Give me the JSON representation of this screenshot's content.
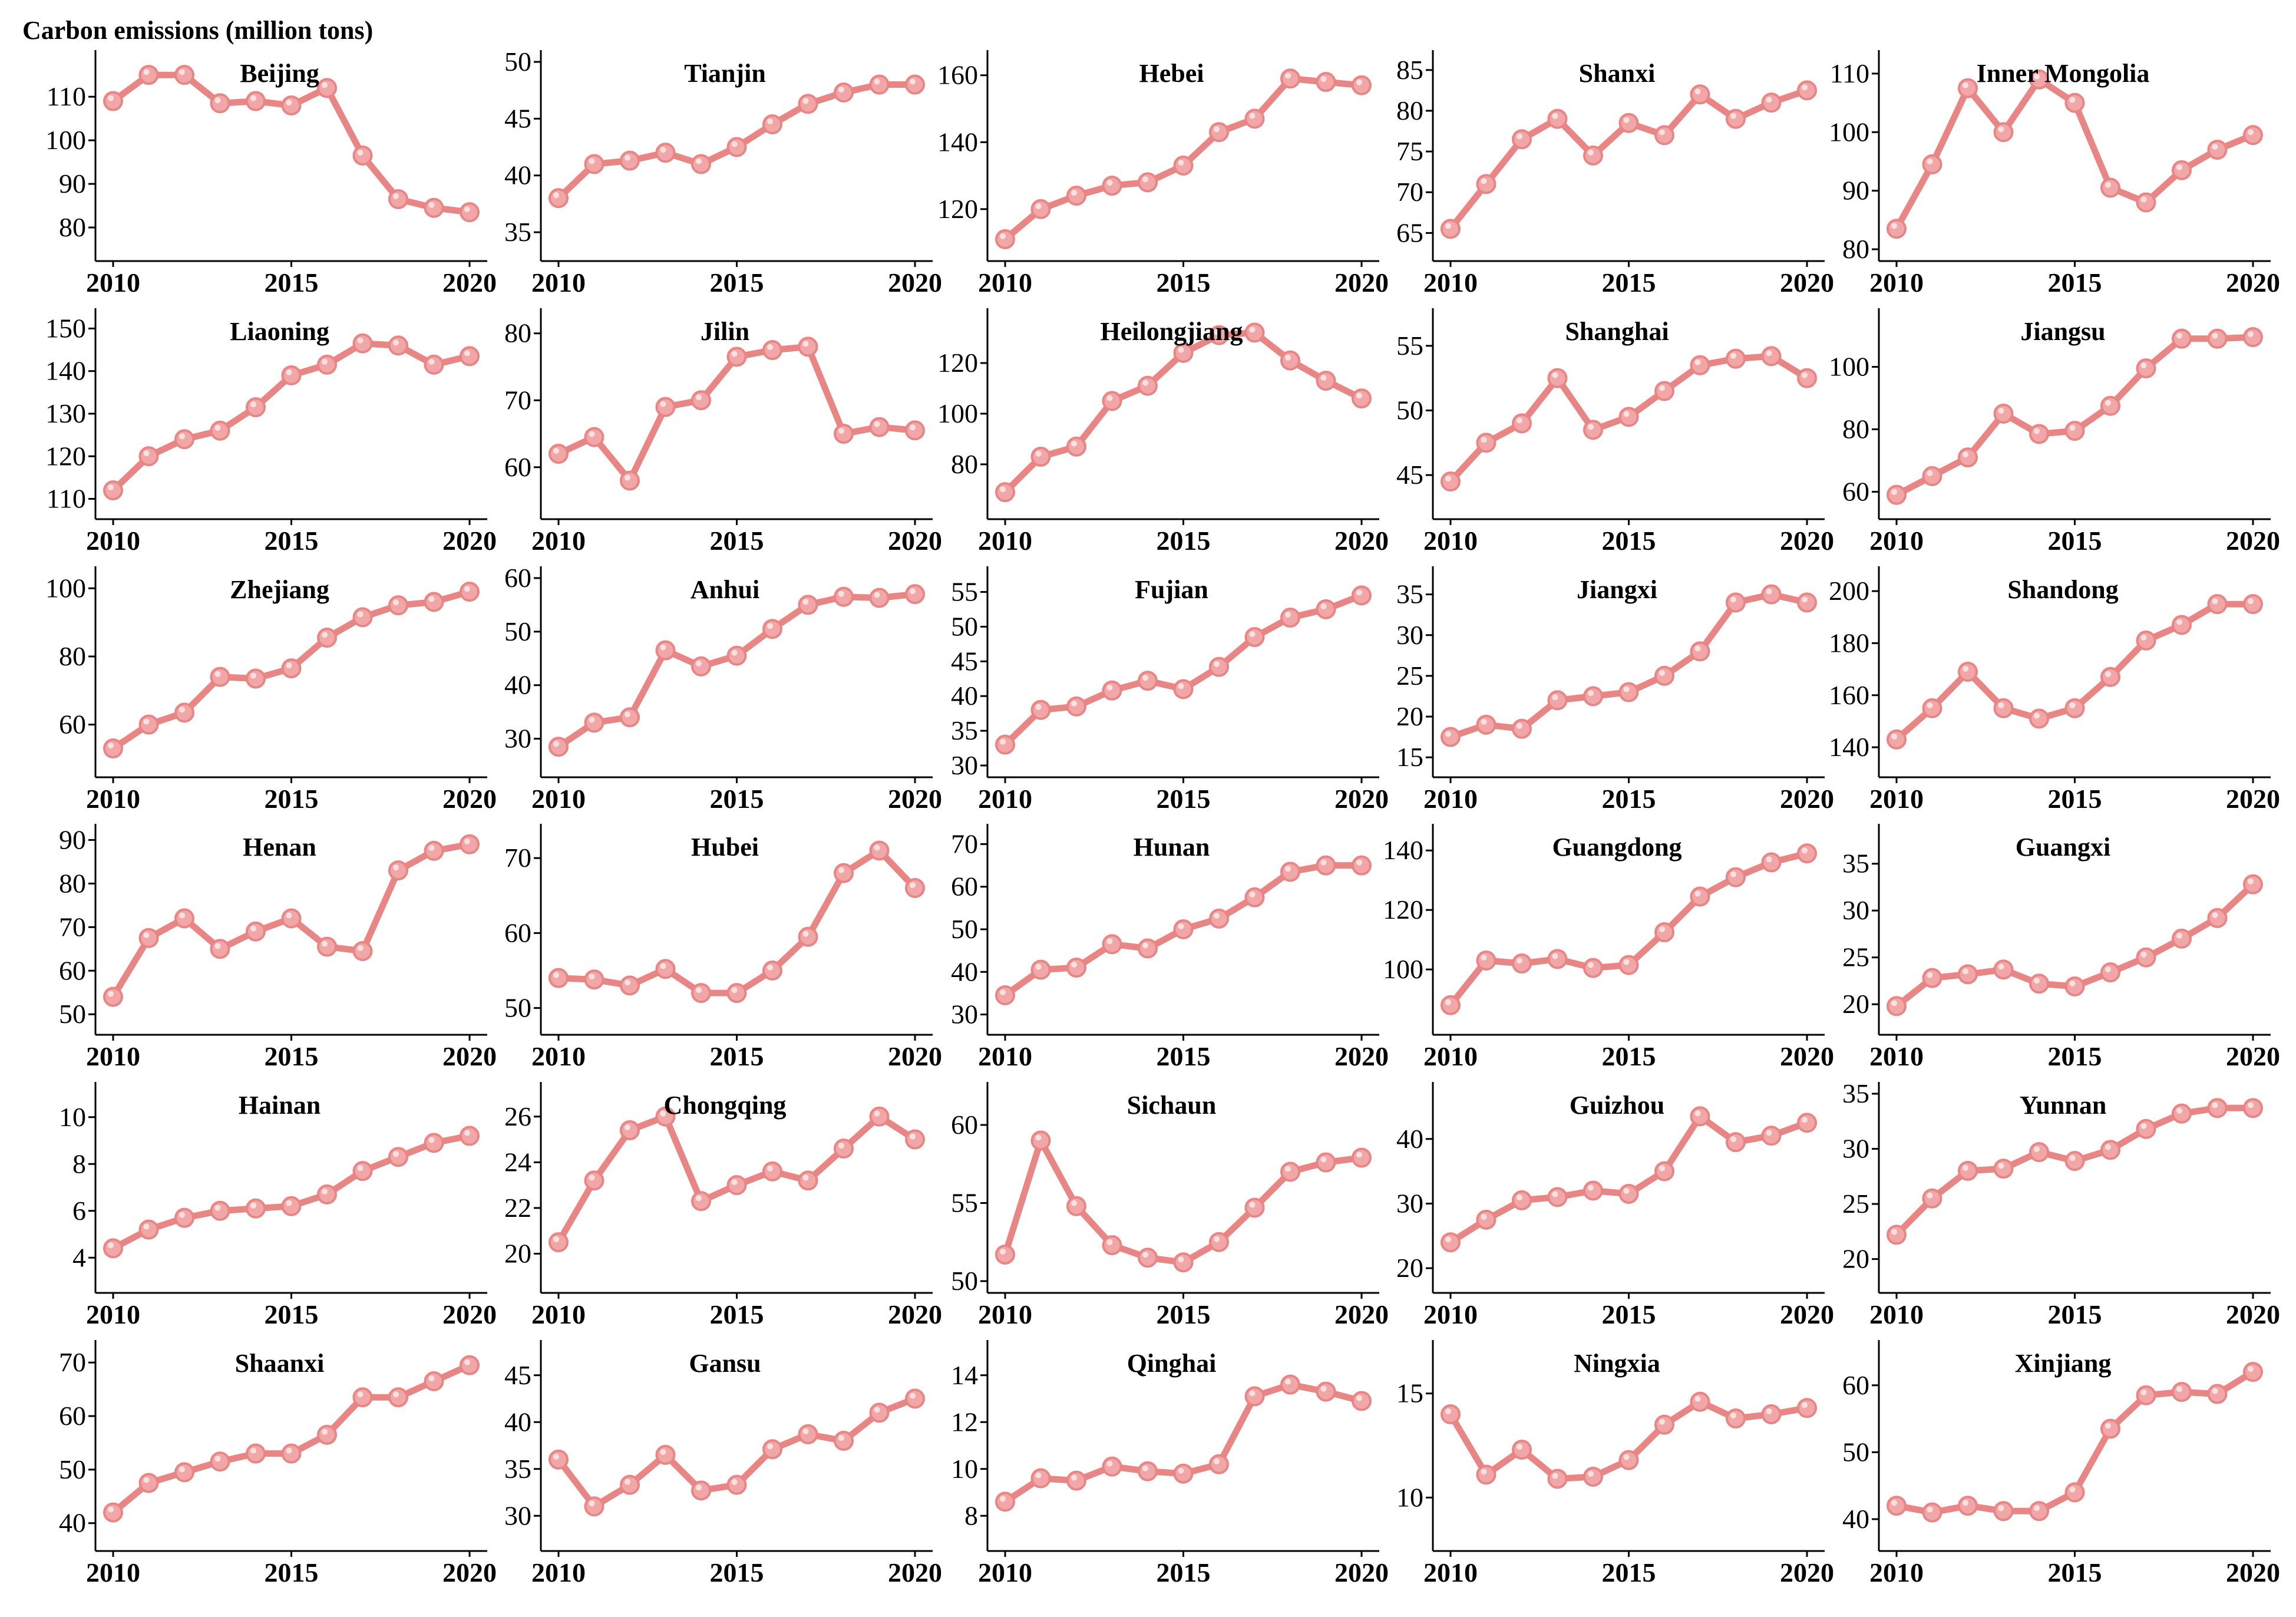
{
  "figure": {
    "ylabel": "Carbon emissions (million tons)",
    "line_color": "#e88585",
    "marker_color": "#f1a7a7"
  },
  "chart_data": [
    {
      "type": "line",
      "title": "Beijing",
      "xlim": [
        2010,
        2020
      ],
      "xticks": [
        2010,
        2015,
        2020
      ],
      "ylim": [
        75,
        118
      ],
      "yticks": [
        80,
        90,
        100,
        110
      ],
      "x": [
        2010,
        2011,
        2012,
        2013,
        2014,
        2015,
        2016,
        2017,
        2018,
        2019,
        2020
      ],
      "values": [
        109,
        115,
        115,
        108.5,
        109,
        108,
        112,
        96.5,
        86.5,
        84.5,
        83.5
      ]
    },
    {
      "type": "line",
      "title": "Tianjin",
      "xlim": [
        2010,
        2020
      ],
      "xticks": [
        2010,
        2015,
        2020
      ],
      "ylim": [
        33.5,
        50
      ],
      "yticks": [
        35,
        40,
        45,
        50
      ],
      "x": [
        2010,
        2011,
        2012,
        2013,
        2014,
        2015,
        2016,
        2017,
        2018,
        2019,
        2020
      ],
      "values": [
        38,
        41,
        41.3,
        42,
        41,
        42.5,
        44.5,
        46.3,
        47.3,
        48,
        48
      ]
    },
    {
      "type": "line",
      "title": "Hebei",
      "xlim": [
        2010,
        2020
      ],
      "xticks": [
        2010,
        2015,
        2020
      ],
      "ylim": [
        108,
        164
      ],
      "yticks": [
        120,
        140,
        160
      ],
      "x": [
        2010,
        2011,
        2012,
        2013,
        2014,
        2015,
        2016,
        2017,
        2018,
        2019,
        2020
      ],
      "values": [
        111,
        120,
        124,
        127,
        128,
        133,
        143,
        147,
        159,
        158,
        157
      ]
    },
    {
      "type": "line",
      "title": "Shanxi",
      "xlim": [
        2010,
        2020
      ],
      "xticks": [
        2010,
        2015,
        2020
      ],
      "ylim": [
        63,
        86
      ],
      "yticks": [
        65,
        70,
        75,
        80,
        85
      ],
      "x": [
        2010,
        2011,
        2012,
        2013,
        2014,
        2015,
        2016,
        2017,
        2018,
        2019,
        2020
      ],
      "values": [
        65.5,
        71,
        76.5,
        79,
        74.5,
        78.5,
        77,
        82,
        79,
        81,
        82.5
      ]
    },
    {
      "type": "line",
      "title": "Inner Mongolia",
      "xlim": [
        2010,
        2020
      ],
      "xticks": [
        2010,
        2015,
        2020
      ],
      "ylim": [
        80,
        112
      ],
      "yticks": [
        80,
        90,
        100,
        110
      ],
      "x": [
        2010,
        2011,
        2012,
        2013,
        2014,
        2015,
        2016,
        2017,
        2018,
        2019,
        2020
      ],
      "values": [
        83.5,
        94.5,
        107.5,
        100,
        109,
        105,
        90.5,
        88,
        93.5,
        97,
        99.5
      ]
    },
    {
      "type": "line",
      "title": "Liaoning",
      "xlim": [
        2010,
        2020
      ],
      "xticks": [
        2010,
        2015,
        2020
      ],
      "ylim": [
        108,
        152
      ],
      "yticks": [
        110,
        120,
        130,
        140,
        150
      ],
      "x": [
        2010,
        2011,
        2012,
        2013,
        2014,
        2015,
        2016,
        2017,
        2018,
        2019,
        2020
      ],
      "values": [
        112,
        120,
        124,
        126,
        131.5,
        139,
        141.5,
        146.5,
        146,
        141.5,
        143.5
      ]
    },
    {
      "type": "line",
      "title": "Jilin",
      "xlim": [
        2010,
        2020
      ],
      "xticks": [
        2010,
        2015,
        2020
      ],
      "ylim": [
        54,
        82
      ],
      "yticks": [
        60,
        70,
        80
      ],
      "x": [
        2010,
        2011,
        2012,
        2013,
        2014,
        2015,
        2016,
        2017,
        2018,
        2019,
        2020
      ],
      "values": [
        62,
        64.5,
        58,
        69,
        70,
        76.5,
        77.5,
        78,
        65,
        66,
        65.5
      ]
    },
    {
      "type": "line",
      "title": "Heilongjiang",
      "xlim": [
        2010,
        2020
      ],
      "xticks": [
        2010,
        2015,
        2020
      ],
      "ylim": [
        63,
        137
      ],
      "yticks": [
        80,
        100,
        120
      ],
      "x": [
        2010,
        2011,
        2012,
        2013,
        2014,
        2015,
        2016,
        2017,
        2018,
        2019,
        2020
      ],
      "values": [
        69,
        83,
        87,
        105,
        111,
        124,
        131,
        132,
        121,
        113,
        106
      ]
    },
    {
      "type": "line",
      "title": "Shanghai",
      "xlim": [
        2010,
        2020
      ],
      "xticks": [
        2010,
        2015,
        2020
      ],
      "ylim": [
        42.5,
        57
      ],
      "yticks": [
        45,
        50,
        55
      ],
      "x": [
        2010,
        2011,
        2012,
        2013,
        2014,
        2015,
        2016,
        2017,
        2018,
        2019,
        2020
      ],
      "values": [
        44.5,
        47.5,
        49,
        52.5,
        48.5,
        49.5,
        51.5,
        53.5,
        54,
        54.2,
        52.5
      ]
    },
    {
      "type": "line",
      "title": "Jiangsu",
      "xlim": [
        2010,
        2020
      ],
      "xticks": [
        2010,
        2015,
        2020
      ],
      "ylim": [
        55,
        115
      ],
      "yticks": [
        60,
        80,
        100
      ],
      "x": [
        2010,
        2011,
        2012,
        2013,
        2014,
        2015,
        2016,
        2017,
        2018,
        2019,
        2020
      ],
      "values": [
        59,
        65,
        71,
        85,
        78.5,
        79.5,
        87.5,
        99.5,
        109,
        109,
        109.5
      ]
    },
    {
      "type": "line",
      "title": "Zhejiang",
      "xlim": [
        2010,
        2020
      ],
      "xticks": [
        2010,
        2015,
        2020
      ],
      "ylim": [
        48,
        103
      ],
      "yticks": [
        60,
        80,
        100
      ],
      "x": [
        2010,
        2011,
        2012,
        2013,
        2014,
        2015,
        2016,
        2017,
        2018,
        2019,
        2020
      ],
      "values": [
        53,
        60,
        63.5,
        74,
        73.5,
        76.5,
        85.5,
        91.5,
        95,
        96,
        99
      ]
    },
    {
      "type": "line",
      "title": "Anhui",
      "xlim": [
        2010,
        2020
      ],
      "xticks": [
        2010,
        2015,
        2020
      ],
      "ylim": [
        25,
        60
      ],
      "yticks": [
        30,
        40,
        50,
        60
      ],
      "x": [
        2010,
        2011,
        2012,
        2013,
        2014,
        2015,
        2016,
        2017,
        2018,
        2019,
        2020
      ],
      "values": [
        28.5,
        33,
        34,
        46.5,
        43.5,
        45.5,
        50.5,
        55,
        56.5,
        56.3,
        57
      ]
    },
    {
      "type": "line",
      "title": "Fujian",
      "xlim": [
        2010,
        2020
      ],
      "xticks": [
        2010,
        2015,
        2020
      ],
      "ylim": [
        30,
        57
      ],
      "yticks": [
        30,
        35,
        40,
        45,
        50,
        55
      ],
      "x": [
        2010,
        2011,
        2012,
        2013,
        2014,
        2015,
        2016,
        2017,
        2018,
        2019,
        2020
      ],
      "values": [
        33,
        38,
        38.5,
        40.8,
        42.2,
        41,
        44.2,
        48.5,
        51.3,
        52.5,
        54.5
      ]
    },
    {
      "type": "line",
      "title": "Jiangxi",
      "xlim": [
        2010,
        2020
      ],
      "xticks": [
        2010,
        2015,
        2020
      ],
      "ylim": [
        14,
        37
      ],
      "yticks": [
        15,
        20,
        25,
        30,
        35
      ],
      "x": [
        2010,
        2011,
        2012,
        2013,
        2014,
        2015,
        2016,
        2017,
        2018,
        2019,
        2020
      ],
      "values": [
        17.5,
        19,
        18.5,
        22,
        22.5,
        23,
        25,
        28,
        34,
        35,
        34
      ]
    },
    {
      "type": "line",
      "title": "Shandong",
      "xlim": [
        2010,
        2020
      ],
      "xticks": [
        2010,
        2015,
        2020
      ],
      "ylim": [
        133,
        205
      ],
      "yticks": [
        140,
        160,
        180,
        200
      ],
      "x": [
        2010,
        2011,
        2012,
        2013,
        2014,
        2015,
        2016,
        2017,
        2018,
        2019,
        2020
      ],
      "values": [
        143,
        155,
        169,
        155,
        151,
        155,
        167,
        181,
        187,
        195,
        195
      ]
    },
    {
      "type": "line",
      "title": "Henan",
      "xlim": [
        2010,
        2020
      ],
      "xticks": [
        2010,
        2015,
        2020
      ],
      "ylim": [
        48,
        91
      ],
      "yticks": [
        50,
        60,
        70,
        80,
        90
      ],
      "x": [
        2010,
        2011,
        2012,
        2013,
        2014,
        2015,
        2016,
        2017,
        2018,
        2019,
        2020
      ],
      "values": [
        54,
        67.5,
        72,
        65,
        69,
        72,
        65.5,
        64.5,
        83,
        87.5,
        89
      ]
    },
    {
      "type": "line",
      "title": "Hubei",
      "xlim": [
        2010,
        2020
      ],
      "xticks": [
        2010,
        2015,
        2020
      ],
      "ylim": [
        48,
        73
      ],
      "yticks": [
        50,
        60,
        70
      ],
      "x": [
        2010,
        2011,
        2012,
        2013,
        2014,
        2015,
        2016,
        2017,
        2018,
        2019,
        2020
      ],
      "values": [
        54,
        53.8,
        53,
        55.2,
        52,
        52,
        55,
        59.5,
        68,
        71,
        66
      ]
    },
    {
      "type": "line",
      "title": "Hunan",
      "xlim": [
        2010,
        2020
      ],
      "xticks": [
        2010,
        2015,
        2020
      ],
      "ylim": [
        28,
        72
      ],
      "yticks": [
        30,
        40,
        50,
        60,
        70
      ],
      "x": [
        2010,
        2011,
        2012,
        2013,
        2014,
        2015,
        2016,
        2017,
        2018,
        2019,
        2020
      ],
      "values": [
        34.5,
        40.5,
        41,
        46.5,
        45.5,
        50,
        52.5,
        57.5,
        63.5,
        65,
        65
      ]
    },
    {
      "type": "line",
      "title": "Guangdong",
      "xlim": [
        2010,
        2020
      ],
      "xticks": [
        2010,
        2015,
        2020
      ],
      "ylim": [
        82,
        145
      ],
      "yticks": [
        100,
        120,
        140
      ],
      "x": [
        2010,
        2011,
        2012,
        2013,
        2014,
        2015,
        2016,
        2017,
        2018,
        2019,
        2020
      ],
      "values": [
        88,
        103,
        102,
        103.5,
        100.5,
        101.5,
        112.5,
        124.5,
        131,
        136,
        139
      ]
    },
    {
      "type": "line",
      "title": "Guangxi",
      "xlim": [
        2010,
        2020
      ],
      "xticks": [
        2010,
        2015,
        2020
      ],
      "ylim": [
        18,
        38
      ],
      "yticks": [
        20,
        25,
        30,
        35
      ],
      "x": [
        2010,
        2011,
        2012,
        2013,
        2014,
        2015,
        2016,
        2017,
        2018,
        2019,
        2020
      ],
      "values": [
        19.8,
        22.8,
        23.2,
        23.7,
        22.2,
        21.9,
        23.4,
        25,
        27,
        29.2,
        32.8
      ]
    },
    {
      "type": "line",
      "title": "Hainan",
      "xlim": [
        2010,
        2020
      ],
      "xticks": [
        2010,
        2015,
        2020
      ],
      "ylim": [
        3,
        11
      ],
      "yticks": [
        4,
        6,
        8,
        10
      ],
      "x": [
        2010,
        2011,
        2012,
        2013,
        2014,
        2015,
        2016,
        2017,
        2018,
        2019,
        2020
      ],
      "values": [
        4.4,
        5.2,
        5.7,
        6,
        6.1,
        6.2,
        6.7,
        7.7,
        8.3,
        8.9,
        9.2
      ]
    },
    {
      "type": "line",
      "title": "Chongqing",
      "xlim": [
        2010,
        2020
      ],
      "xticks": [
        2010,
        2015,
        2020
      ],
      "ylim": [
        18.8,
        27
      ],
      "yticks": [
        20,
        22,
        24,
        26
      ],
      "x": [
        2010,
        2011,
        2012,
        2013,
        2014,
        2015,
        2016,
        2017,
        2018,
        2019,
        2020
      ],
      "values": [
        20.5,
        23.2,
        25.4,
        26,
        22.3,
        23,
        23.6,
        23.2,
        24.6,
        26,
        25
      ]
    },
    {
      "type": "line",
      "title": "Sichaun",
      "xlim": [
        2010,
        2020
      ],
      "xticks": [
        2010,
        2015,
        2020
      ],
      "ylim": [
        50,
        62
      ],
      "yticks": [
        50,
        55,
        60
      ],
      "x": [
        2010,
        2011,
        2012,
        2013,
        2014,
        2015,
        2016,
        2017,
        2018,
        2019,
        2020
      ],
      "values": [
        51.7,
        59,
        54.8,
        52.3,
        51.5,
        51.2,
        52.5,
        54.7,
        57,
        57.6,
        57.9
      ]
    },
    {
      "type": "line",
      "title": "Guizhou",
      "xlim": [
        2010,
        2020
      ],
      "xticks": [
        2010,
        2015,
        2020
      ],
      "ylim": [
        18,
        47
      ],
      "yticks": [
        20,
        30,
        40
      ],
      "x": [
        2010,
        2011,
        2012,
        2013,
        2014,
        2015,
        2016,
        2017,
        2018,
        2019,
        2020
      ],
      "values": [
        24,
        27.5,
        30.5,
        31,
        32,
        31.5,
        35,
        43.5,
        39.5,
        40.5,
        42.5
      ]
    },
    {
      "type": "line",
      "title": "Yunnan",
      "xlim": [
        2010,
        2020
      ],
      "xticks": [
        2010,
        2015,
        2020
      ],
      "ylim": [
        18,
        35
      ],
      "yticks": [
        20,
        25,
        30,
        35
      ],
      "x": [
        2010,
        2011,
        2012,
        2013,
        2014,
        2015,
        2016,
        2017,
        2018,
        2019,
        2020
      ],
      "values": [
        22.2,
        25.5,
        28,
        28.2,
        29.7,
        28.9,
        29.9,
        31.8,
        33.2,
        33.7,
        33.7
      ]
    },
    {
      "type": "line",
      "title": "Shaanxi",
      "xlim": [
        2010,
        2020
      ],
      "xticks": [
        2010,
        2015,
        2020
      ],
      "ylim": [
        37,
        72
      ],
      "yticks": [
        40,
        50,
        60,
        70
      ],
      "x": [
        2010,
        2011,
        2012,
        2013,
        2014,
        2015,
        2016,
        2017,
        2018,
        2019,
        2020
      ],
      "values": [
        42,
        47.5,
        49.5,
        51.5,
        53,
        53,
        56.5,
        63.5,
        63.5,
        66.5,
        69.5
      ]
    },
    {
      "type": "line",
      "title": "Gansu",
      "xlim": [
        2010,
        2020
      ],
      "xticks": [
        2010,
        2015,
        2020
      ],
      "ylim": [
        27.5,
        47.5
      ],
      "yticks": [
        30,
        35,
        40,
        45
      ],
      "x": [
        2010,
        2011,
        2012,
        2013,
        2014,
        2015,
        2016,
        2017,
        2018,
        2019,
        2020
      ],
      "values": [
        36,
        31,
        33.3,
        36.5,
        32.7,
        33.3,
        37.1,
        38.7,
        38,
        41,
        42.5
      ]
    },
    {
      "type": "line",
      "title": "Qinghai",
      "xlim": [
        2010,
        2020
      ],
      "xticks": [
        2010,
        2015,
        2020
      ],
      "ylim": [
        7,
        15
      ],
      "yticks": [
        8,
        10,
        12,
        14
      ],
      "x": [
        2010,
        2011,
        2012,
        2013,
        2014,
        2015,
        2016,
        2017,
        2018,
        2019,
        2020
      ],
      "values": [
        8.6,
        9.6,
        9.5,
        10.1,
        9.9,
        9.8,
        10.2,
        13.1,
        13.6,
        13.3,
        12.9
      ]
    },
    {
      "type": "line",
      "title": "Ningxia",
      "xlim": [
        2010,
        2020
      ],
      "xticks": [
        2010,
        2015,
        2020
      ],
      "ylim": [
        8,
        17
      ],
      "yticks": [
        10,
        15
      ],
      "x": [
        2010,
        2011,
        2012,
        2013,
        2014,
        2015,
        2016,
        2017,
        2018,
        2019,
        2020
      ],
      "values": [
        14,
        11.1,
        12.3,
        10.9,
        11,
        11.8,
        13.5,
        14.6,
        13.8,
        14,
        14.3
      ]
    },
    {
      "type": "line",
      "title": "Xinjiang",
      "xlim": [
        2010,
        2020
      ],
      "xticks": [
        2010,
        2015,
        2020
      ],
      "ylim": [
        37,
        65
      ],
      "yticks": [
        40,
        50,
        60
      ],
      "x": [
        2010,
        2011,
        2012,
        2013,
        2014,
        2015,
        2016,
        2017,
        2018,
        2019,
        2020
      ],
      "values": [
        42,
        41,
        42,
        41.2,
        41.2,
        44,
        53.5,
        58.5,
        59,
        58.7,
        62
      ]
    }
  ]
}
